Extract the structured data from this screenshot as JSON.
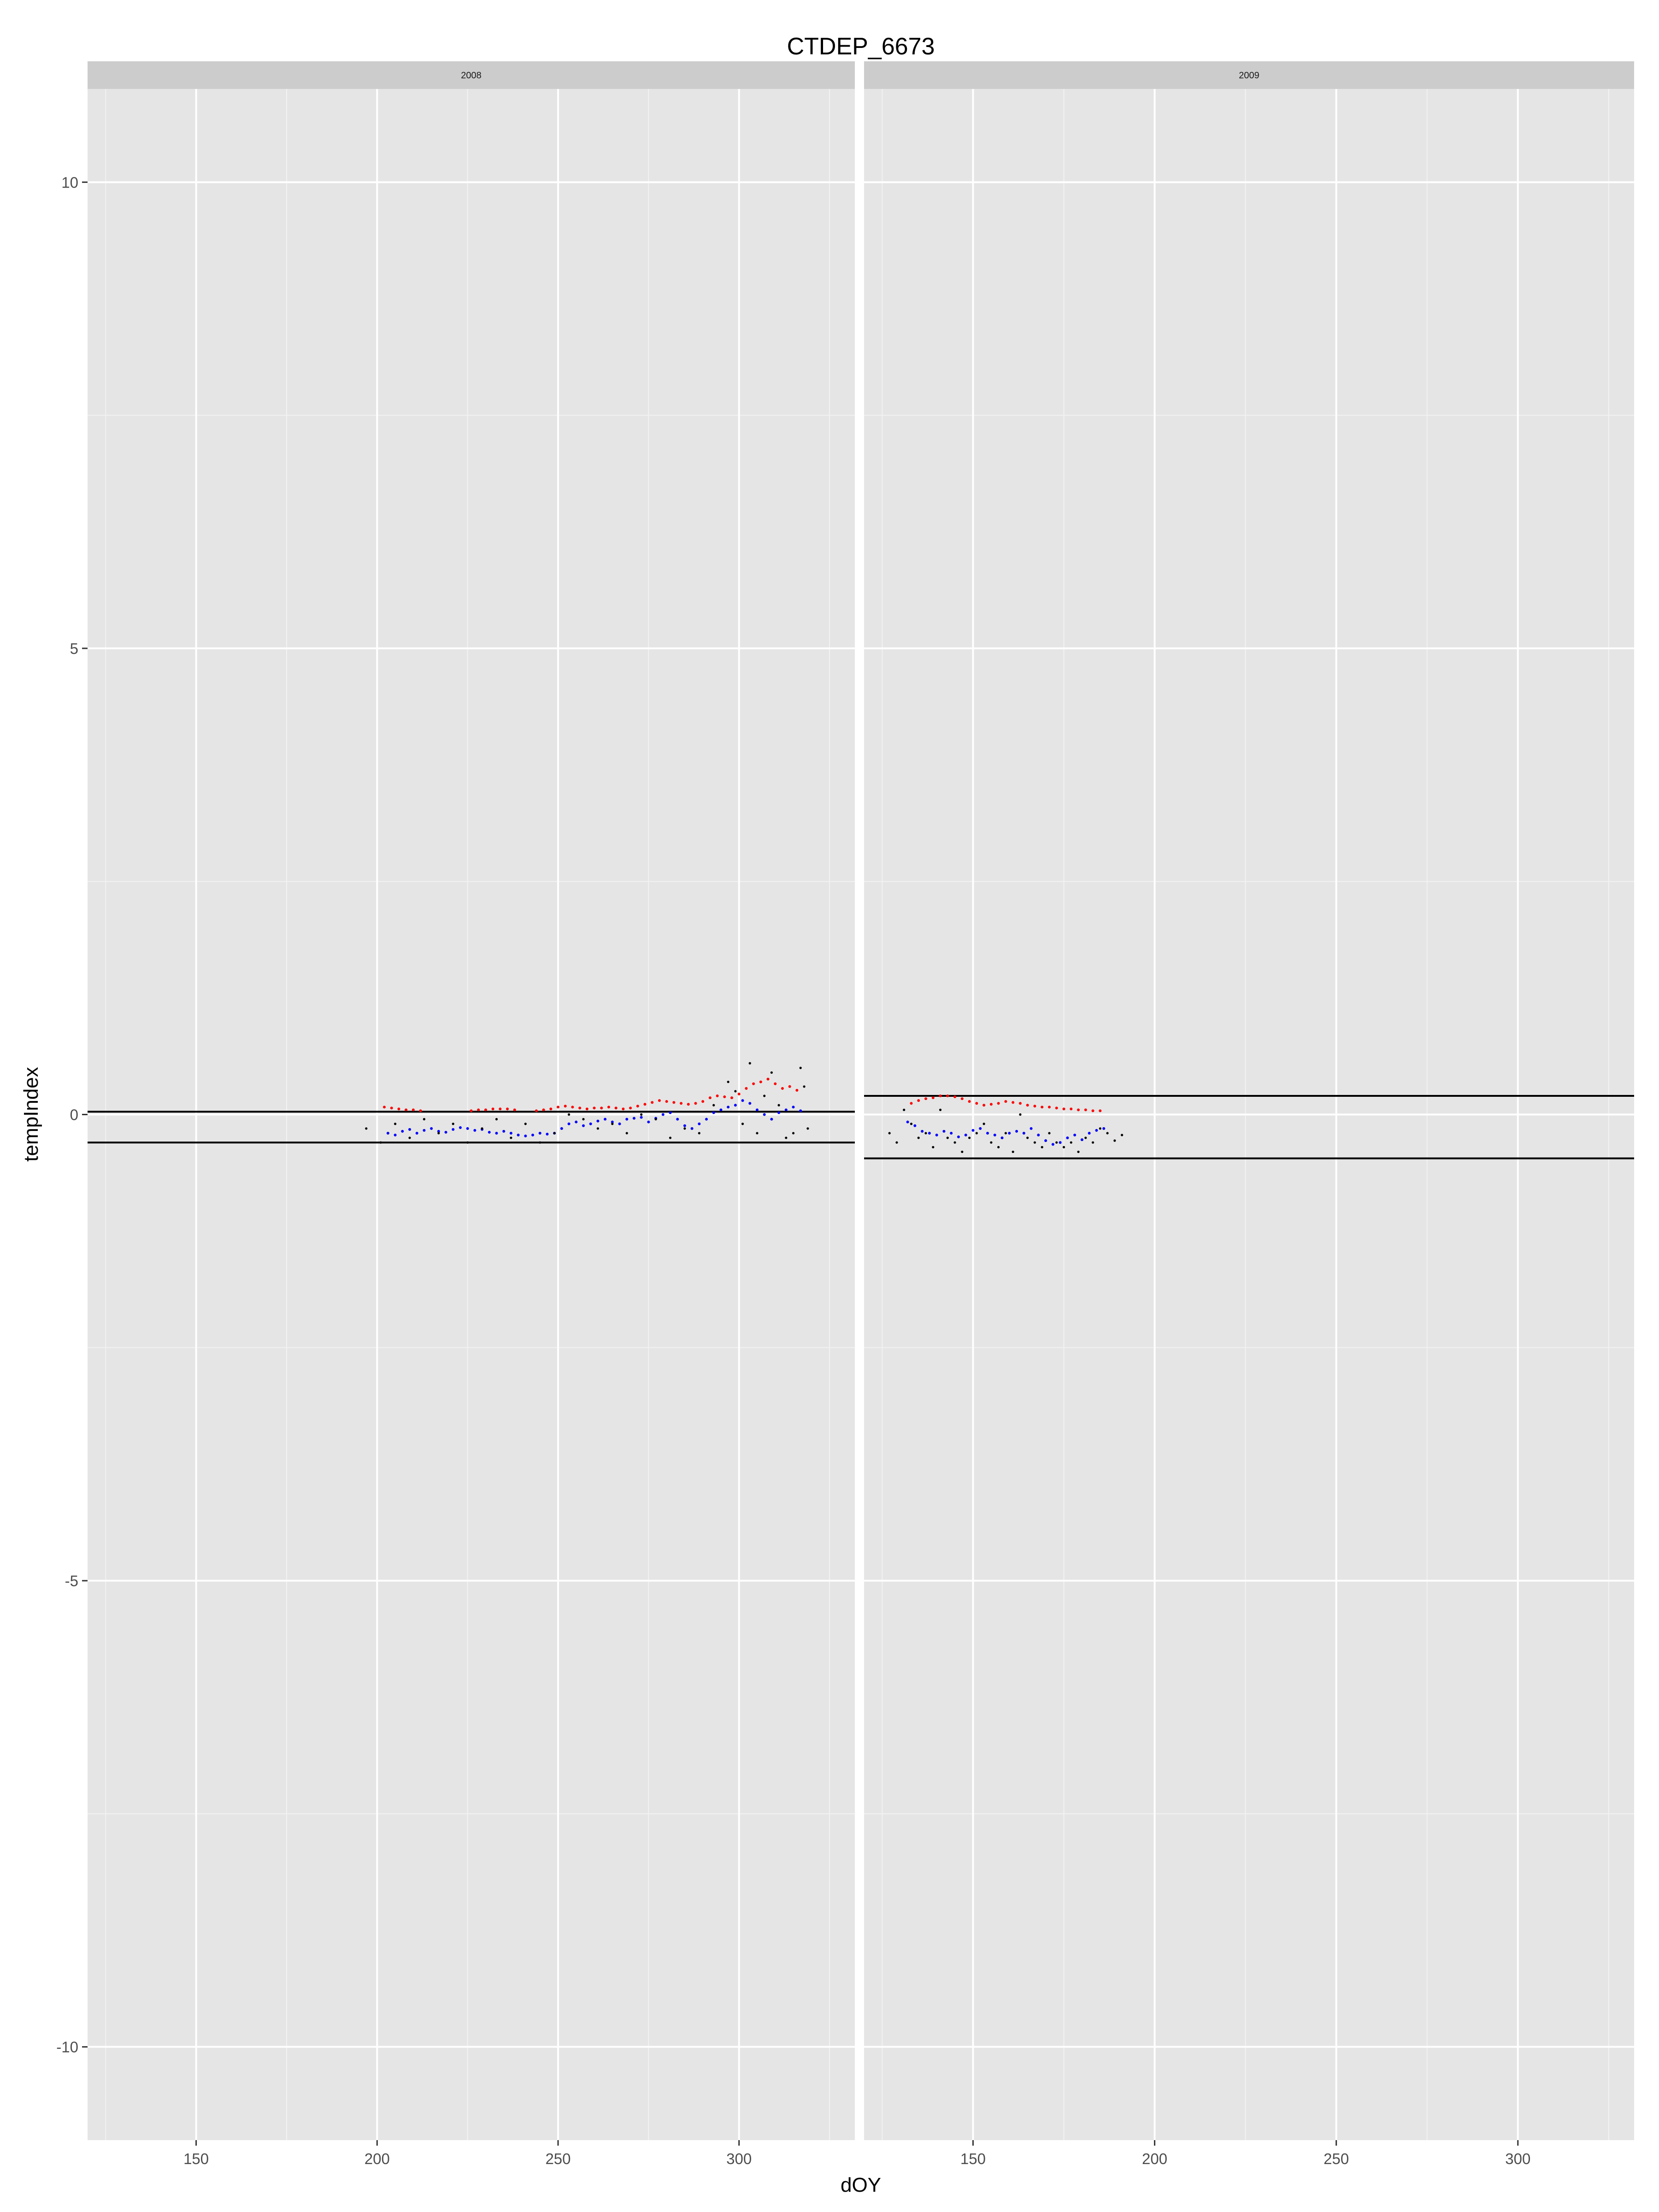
{
  "chart_data": {
    "type": "scatter",
    "title": "CTDEP_6673",
    "xlabel": "dOY",
    "ylabel": "tempIndex",
    "xlim": [
      120,
      332
    ],
    "ylim": [
      -11,
      11
    ],
    "x_ticks": [
      150,
      200,
      250,
      300
    ],
    "y_ticks": [
      -10,
      -5,
      0,
      5,
      10
    ],
    "grid": true,
    "legend": "none",
    "colors": {
      "panel_bg": "#e5e5e5",
      "strip_bg": "#cccccc",
      "grid_major": "#ffffff",
      "grid_minor": "#f2f2f2",
      "observed_points": "#000000",
      "upper_series": "#ff0000",
      "lower_series": "#0000ff",
      "hlines": "#000000"
    },
    "facets": [
      {
        "label": "2008",
        "hlines": [
          0.03,
          -0.3
        ],
        "series": [
          {
            "color": "red",
            "x": [
              202,
              204,
              206,
              208,
              210,
              212,
              226,
              228,
              230,
              232,
              234,
              236,
              238,
              244,
              246,
              248,
              250,
              252,
              254,
              256,
              258,
              260,
              262,
              264,
              266,
              268,
              270,
              272,
              274,
              276,
              278,
              280,
              282,
              284,
              286,
              288,
              290,
              292,
              294,
              296,
              298,
              300,
              302,
              304,
              306,
              308,
              310,
              312,
              314,
              316
            ],
            "y": [
              0.08,
              0.07,
              0.06,
              0.05,
              0.05,
              0.04,
              0.04,
              0.05,
              0.05,
              0.06,
              0.06,
              0.06,
              0.05,
              0.04,
              0.05,
              0.06,
              0.08,
              0.09,
              0.08,
              0.07,
              0.06,
              0.07,
              0.07,
              0.08,
              0.07,
              0.06,
              0.07,
              0.09,
              0.11,
              0.13,
              0.15,
              0.14,
              0.13,
              0.12,
              0.11,
              0.12,
              0.14,
              0.18,
              0.2,
              0.19,
              0.18,
              0.22,
              0.28,
              0.33,
              0.35,
              0.38,
              0.33,
              0.28,
              0.3,
              0.26
            ]
          },
          {
            "color": "blue",
            "x": [
              203,
              205,
              207,
              209,
              211,
              213,
              215,
              217,
              219,
              221,
              223,
              225,
              227,
              229,
              231,
              233,
              235,
              237,
              239,
              241,
              243,
              245,
              247,
              249,
              251,
              253,
              255,
              257,
              259,
              261,
              263,
              265,
              267,
              269,
              271,
              273,
              275,
              277,
              279,
              281,
              283,
              285,
              287,
              289,
              291,
              293,
              295,
              297,
              299,
              301,
              303,
              305,
              307,
              309,
              311,
              313,
              315,
              317
            ],
            "y": [
              -0.2,
              -0.22,
              -0.18,
              -0.16,
              -0.2,
              -0.17,
              -0.15,
              -0.18,
              -0.19,
              -0.16,
              -0.14,
              -0.15,
              -0.17,
              -0.16,
              -0.19,
              -0.2,
              -0.18,
              -0.2,
              -0.22,
              -0.23,
              -0.22,
              -0.2,
              -0.21,
              -0.2,
              -0.15,
              -0.1,
              -0.08,
              -0.12,
              -0.1,
              -0.07,
              -0.05,
              -0.08,
              -0.1,
              -0.05,
              -0.04,
              -0.03,
              -0.08,
              -0.04,
              0,
              0.02,
              -0.05,
              -0.12,
              -0.15,
              -0.1,
              -0.05,
              0.02,
              0.05,
              0.08,
              0.1,
              0.15,
              0.12,
              0.05,
              0,
              -0.05,
              0.02,
              0.05,
              0.08,
              0.04
            ]
          },
          {
            "color": "black",
            "x": [
              197,
              201,
              205,
              209,
              213,
              217,
              221,
              225,
              229,
              233,
              237,
              241,
              245,
              249,
              253,
              257,
              261,
              265,
              269,
              273,
              277,
              281,
              285,
              289,
              293,
              297,
              299,
              301,
              303,
              305,
              307,
              309,
              311,
              313,
              315,
              317,
              318,
              319
            ],
            "y": [
              -0.15,
              -0.3,
              -0.1,
              -0.25,
              -0.05,
              -0.2,
              -0.1,
              -0.3,
              -0.15,
              -0.05,
              -0.25,
              -0.1,
              -0.3,
              -0.2,
              0,
              -0.05,
              -0.15,
              -0.1,
              -0.2,
              0,
              -0.05,
              -0.25,
              -0.15,
              -0.2,
              0.1,
              0.35,
              0.25,
              -0.1,
              0.55,
              -0.2,
              0.2,
              0.45,
              0.1,
              -0.25,
              -0.2,
              0.5,
              0.3,
              -0.15
            ]
          }
        ]
      },
      {
        "label": "2009",
        "hlines": [
          0.2,
          -0.47
        ],
        "series": [
          {
            "color": "red",
            "x": [
              133,
              135,
              137,
              139,
              141,
              143,
              145,
              147,
              149,
              151,
              153,
              155,
              157,
              159,
              161,
              163,
              165,
              167,
              169,
              171,
              173,
              175,
              177,
              179,
              181,
              183,
              185
            ],
            "y": [
              0.12,
              0.15,
              0.17,
              0.18,
              0.2,
              0.2,
              0.19,
              0.17,
              0.14,
              0.12,
              0.1,
              0.11,
              0.12,
              0.14,
              0.13,
              0.12,
              0.1,
              0.09,
              0.08,
              0.08,
              0.07,
              0.06,
              0.06,
              0.05,
              0.05,
              0.04,
              0.04
            ]
          },
          {
            "color": "blue",
            "x": [
              132,
              134,
              136,
              138,
              140,
              142,
              144,
              146,
              148,
              150,
              152,
              154,
              156,
              158,
              160,
              162,
              164,
              166,
              168,
              170,
              172,
              174,
              176,
              178,
              180,
              182,
              184,
              186
            ],
            "y": [
              -0.08,
              -0.12,
              -0.18,
              -0.2,
              -0.22,
              -0.18,
              -0.2,
              -0.24,
              -0.22,
              -0.17,
              -0.15,
              -0.2,
              -0.22,
              -0.25,
              -0.2,
              -0.18,
              -0.2,
              -0.15,
              -0.22,
              -0.28,
              -0.32,
              -0.3,
              -0.25,
              -0.22,
              -0.27,
              -0.2,
              -0.17,
              -0.15
            ]
          },
          {
            "color": "black",
            "x": [
              127,
              129,
              131,
              133,
              135,
              137,
              139,
              141,
              143,
              145,
              147,
              149,
              151,
              153,
              155,
              157,
              159,
              161,
              163,
              165,
              167,
              169,
              171,
              173,
              175,
              177,
              179,
              181,
              183,
              185,
              187,
              189,
              191
            ],
            "y": [
              -0.2,
              -0.3,
              0.05,
              -0.1,
              -0.25,
              -0.2,
              -0.35,
              0.05,
              -0.25,
              -0.3,
              -0.4,
              -0.25,
              -0.2,
              -0.1,
              -0.3,
              -0.35,
              -0.2,
              -0.4,
              0,
              -0.25,
              -0.3,
              -0.35,
              -0.2,
              -0.3,
              -0.35,
              -0.3,
              -0.4,
              -0.25,
              -0.3,
              -0.15,
              -0.2,
              -0.28,
              -0.22
            ]
          }
        ]
      }
    ]
  }
}
